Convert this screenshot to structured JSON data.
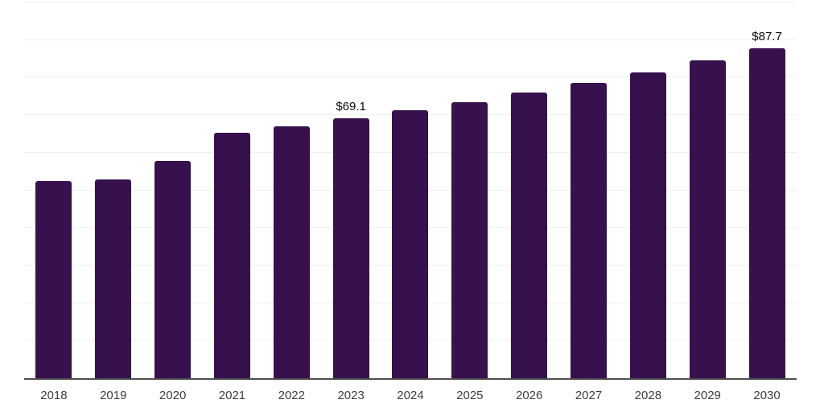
{
  "chart_data": {
    "type": "bar",
    "title": "",
    "xlabel": "",
    "ylabel": "",
    "categories": [
      "2018",
      "2019",
      "2020",
      "2021",
      "2022",
      "2023",
      "2024",
      "2025",
      "2026",
      "2027",
      "2028",
      "2029",
      "2030"
    ],
    "values": [
      52.4,
      52.8,
      57.9,
      65.3,
      67.0,
      69.1,
      71.4,
      73.4,
      76.0,
      78.5,
      81.4,
      84.5,
      87.7
    ],
    "data_labels": [
      "",
      "",
      "",
      "",
      "",
      "$69.1",
      "",
      "",
      "",
      "",
      "",
      "",
      "$87.7"
    ],
    "ylim": [
      0,
      100
    ],
    "gridline_interval": 10,
    "grid_on": true,
    "legend": "none"
  },
  "colors": {
    "bar": "#36114d",
    "grid": "#f0f0f0",
    "axis": "#4f4f4f",
    "tick_label": "#3d3d3d",
    "value_label": "#0a0a0a",
    "background": "#ffffff"
  }
}
